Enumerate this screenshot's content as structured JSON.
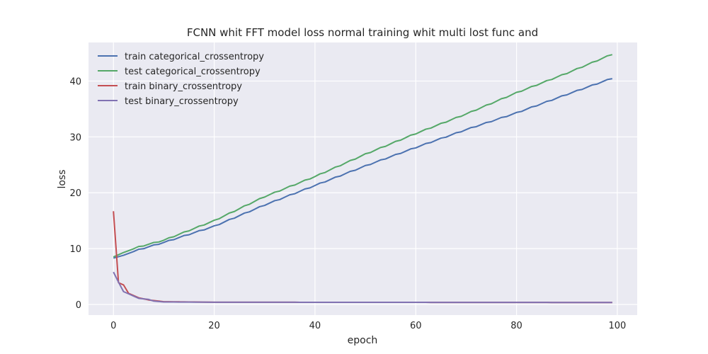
{
  "chart_data": {
    "type": "line",
    "title": "FCNN whit FFT model loss normal training whit multi lost func and",
    "xlabel": "epoch",
    "ylabel": "loss",
    "xlim": [
      -4.95,
      103.95
    ],
    "ylim": [
      -1.9,
      46.9
    ],
    "xticks": [
      0,
      20,
      40,
      60,
      80,
      100
    ],
    "yticks": [
      0,
      10,
      20,
      30,
      40
    ],
    "grid": true,
    "legend_position": "top-left",
    "x_range": [
      0,
      99
    ],
    "series": [
      {
        "name": "train categorical_crossentropy",
        "color": "#4c72b0",
        "anchors": [
          [
            0,
            8.3
          ],
          [
            2,
            8.8
          ],
          [
            5,
            9.8
          ],
          [
            10,
            11.1
          ],
          [
            20,
            14.0
          ],
          [
            30,
            17.8
          ],
          [
            40,
            21.3
          ],
          [
            50,
            24.8
          ],
          [
            60,
            28.1
          ],
          [
            70,
            31.3
          ],
          [
            80,
            34.3
          ],
          [
            90,
            37.6
          ],
          [
            99,
            40.5
          ]
        ]
      },
      {
        "name": "test categorical_crossentropy",
        "color": "#55a868",
        "anchors": [
          [
            0,
            8.5
          ],
          [
            2,
            9.3
          ],
          [
            5,
            10.3
          ],
          [
            10,
            11.5
          ],
          [
            20,
            15.0
          ],
          [
            30,
            19.3
          ],
          [
            40,
            22.9
          ],
          [
            50,
            26.9
          ],
          [
            60,
            30.6
          ],
          [
            70,
            34.1
          ],
          [
            80,
            37.9
          ],
          [
            90,
            41.4
          ],
          [
            99,
            44.8
          ]
        ]
      },
      {
        "name": "train binary_crossentropy",
        "color": "#c44e52",
        "anchors": [
          [
            0,
            16.7
          ],
          [
            1,
            3.9
          ],
          [
            2,
            3.5
          ],
          [
            3,
            2.0
          ],
          [
            5,
            1.2
          ],
          [
            7,
            0.8
          ],
          [
            10,
            0.5
          ],
          [
            20,
            0.4
          ],
          [
            99,
            0.35
          ]
        ]
      },
      {
        "name": "test binary_crossentropy",
        "color": "#8172b2",
        "anchors": [
          [
            0,
            5.8
          ],
          [
            1,
            4.0
          ],
          [
            2,
            2.3
          ],
          [
            3,
            1.9
          ],
          [
            5,
            1.1
          ],
          [
            7,
            0.9
          ],
          [
            8,
            0.6
          ],
          [
            10,
            0.45
          ],
          [
            20,
            0.4
          ],
          [
            99,
            0.35
          ]
        ]
      }
    ]
  }
}
